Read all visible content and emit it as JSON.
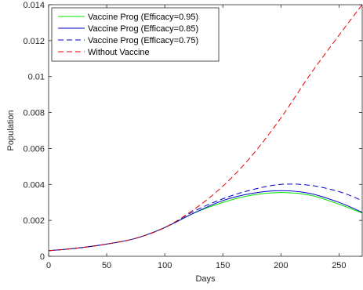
{
  "chart_data": {
    "type": "line",
    "title": "",
    "xlabel": "Days",
    "ylabel": "Population",
    "xlim": [
      0,
      270
    ],
    "ylim": [
      0,
      0.014
    ],
    "xticks": [
      0,
      50,
      100,
      150,
      200,
      250
    ],
    "xtick_labels": [
      "0",
      "50",
      "100",
      "150",
      "200",
      "250"
    ],
    "yticks": [
      0,
      0.002,
      0.004,
      0.006,
      0.008,
      0.01,
      0.012,
      0.014
    ],
    "ytick_labels": [
      "0",
      "0.002",
      "0.004",
      "0.006",
      "0.008",
      "0.01",
      "0.012",
      "0.014"
    ],
    "grid": false,
    "legend_position": "top-left",
    "x": [
      0,
      25,
      50,
      75,
      100,
      125,
      150,
      175,
      200,
      225,
      250,
      270
    ],
    "series": [
      {
        "name": "Vaccine Prog (Efficacy=0.95)",
        "color": "#00e600",
        "dash": "solid",
        "values": [
          0.00031,
          0.00046,
          0.00068,
          0.001,
          0.0016,
          0.0024,
          0.003,
          0.0034,
          0.00355,
          0.0034,
          0.0029,
          0.0024
        ]
      },
      {
        "name": "Vaccine Prog (Efficacy=0.85)",
        "color": "#0000cc",
        "dash": "solid",
        "values": [
          0.00031,
          0.00046,
          0.00068,
          0.001,
          0.0016,
          0.0024,
          0.0031,
          0.0035,
          0.00365,
          0.0035,
          0.003,
          0.00245
        ]
      },
      {
        "name": "Vaccine Prog (Efficacy=0.75)",
        "color": "#0000cc",
        "dash": "dashed",
        "values": [
          0.00031,
          0.00046,
          0.00068,
          0.001,
          0.0016,
          0.0025,
          0.0032,
          0.0037,
          0.004,
          0.00395,
          0.0036,
          0.0031
        ]
      },
      {
        "name": "Without Vaccine",
        "color": "#e60000",
        "dash": "dashed",
        "values": [
          0.00031,
          0.00046,
          0.00068,
          0.001,
          0.0016,
          0.0026,
          0.0039,
          0.0056,
          0.0077,
          0.0101,
          0.0123,
          0.014
        ]
      }
    ]
  }
}
